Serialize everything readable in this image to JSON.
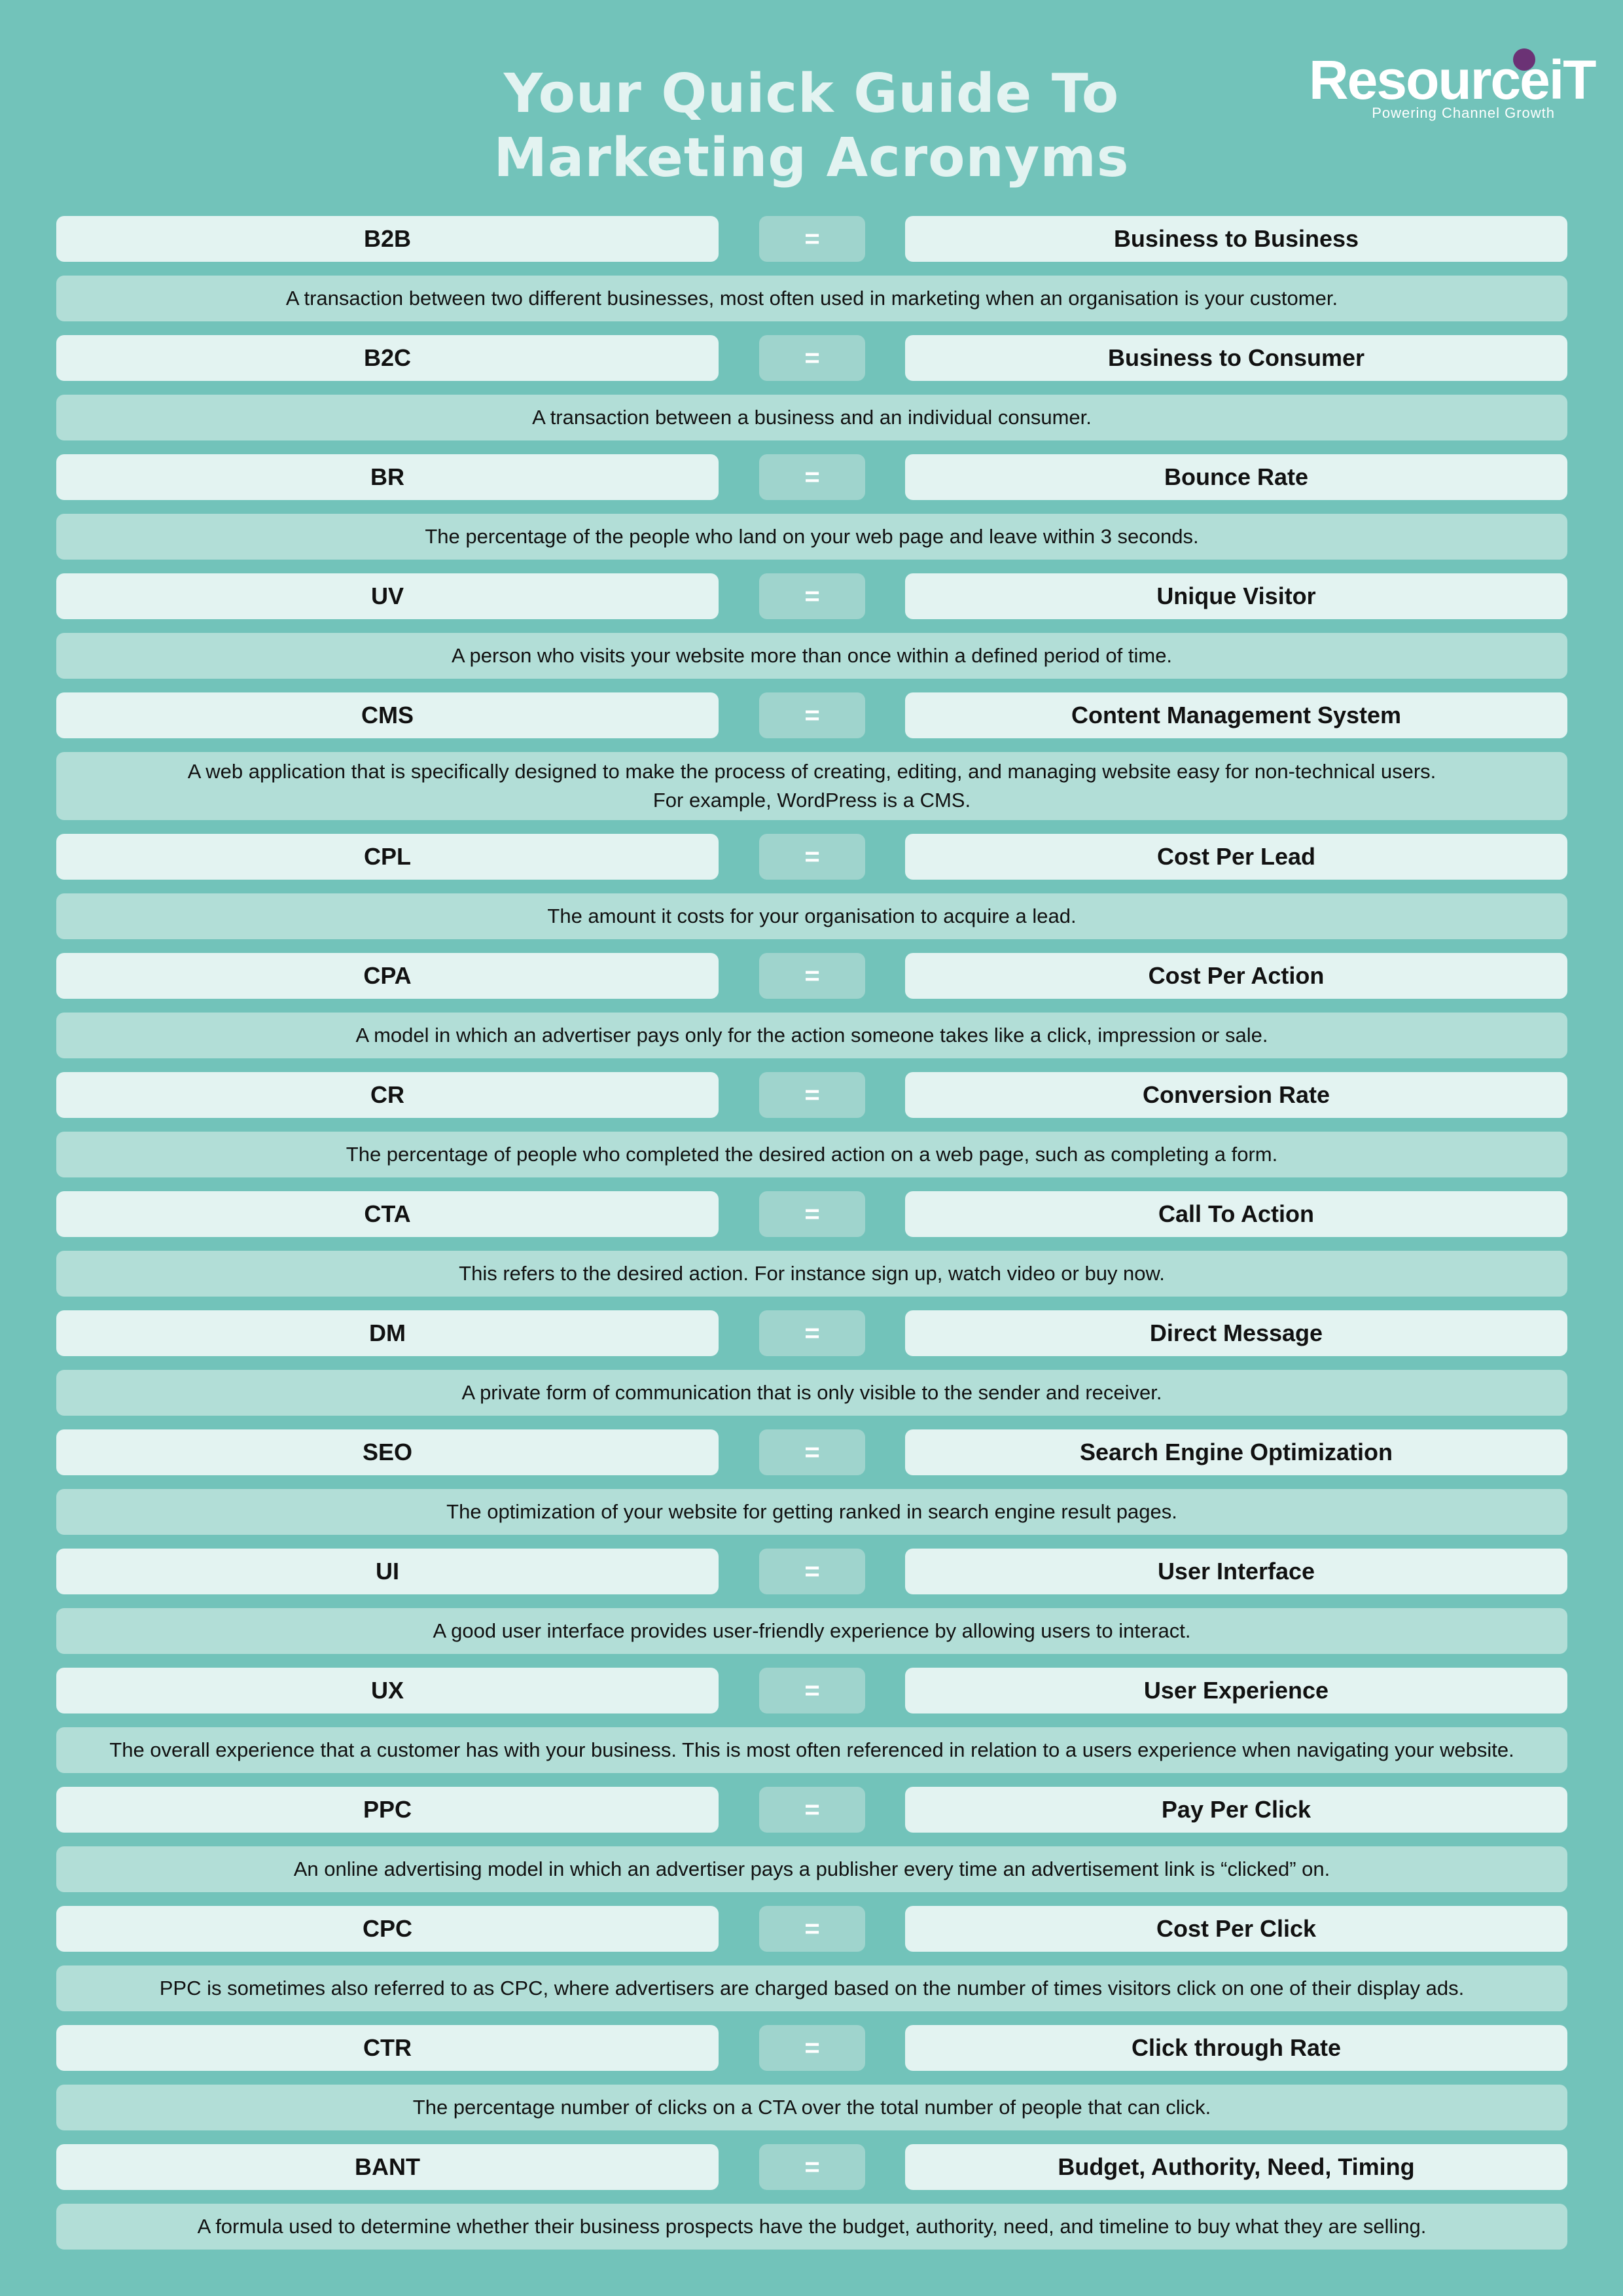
{
  "header": {
    "title_line1": "Your Quick Guide To",
    "title_line2": "Marketing Acronyms"
  },
  "logo": {
    "word": "ResourceiT",
    "tagline": "Powering Channel Growth",
    "dot_color": "#6b3275"
  },
  "colors": {
    "background": "#72c3ba",
    "pill": "#e3f3f1",
    "description": "#b2ded7",
    "equals": "#9fd4cd"
  },
  "equals_sign": "=",
  "entries": [
    {
      "acronym": "B2B",
      "meaning": "Business to Business",
      "description": [
        "A transaction between two different businesses, most often used in marketing when an organisation is your customer."
      ]
    },
    {
      "acronym": "B2C",
      "meaning": "Business to Consumer",
      "description": [
        "A transaction between a business and an individual consumer."
      ]
    },
    {
      "acronym": "BR",
      "meaning": "Bounce Rate",
      "description": [
        "The percentage of the people who land on your web page and leave within 3 seconds."
      ]
    },
    {
      "acronym": "UV",
      "meaning": "Unique Visitor",
      "description": [
        "A person who visits your website more than once within a defined period of time."
      ]
    },
    {
      "acronym": "CMS",
      "meaning": "Content Management System",
      "description": [
        "A web application that is specifically designed to make the process of creating, editing, and managing website easy for non-technical users.",
        "For example, WordPress is a CMS."
      ]
    },
    {
      "acronym": "CPL",
      "meaning": "Cost Per Lead",
      "description": [
        "The amount it costs for your organisation to acquire a lead."
      ]
    },
    {
      "acronym": "CPA",
      "meaning": "Cost Per Action",
      "description": [
        "A model in which an advertiser pays only for the action someone takes like a click, impression or sale."
      ]
    },
    {
      "acronym": "CR",
      "meaning": "Conversion Rate",
      "description": [
        "The percentage of people who completed the desired action on a web page, such as completing a form."
      ]
    },
    {
      "acronym": "CTA",
      "meaning": "Call To Action",
      "description": [
        "This refers to the desired action. For instance sign up, watch video or buy now."
      ]
    },
    {
      "acronym": "DM",
      "meaning": "Direct Message",
      "description": [
        "A private form of communication that is only visible to the sender and receiver."
      ]
    },
    {
      "acronym": "SEO",
      "meaning": "Search Engine Optimization",
      "description": [
        "The optimization of your website for getting ranked in search engine result pages."
      ]
    },
    {
      "acronym": "UI",
      "meaning": "User Interface",
      "description": [
        "A good user interface provides user-friendly experience by allowing users to interact."
      ]
    },
    {
      "acronym": "UX",
      "meaning": "User Experience",
      "description": [
        "The overall experience that a customer has with your business. This is most often referenced in relation to a users experience when navigating your website."
      ]
    },
    {
      "acronym": "PPC",
      "meaning": "Pay Per Click",
      "description": [
        "An online advertising model in which an advertiser pays a publisher every time an advertisement link is “clicked” on."
      ]
    },
    {
      "acronym": "CPC",
      "meaning": "Cost Per Click",
      "description": [
        "PPC is sometimes also referred to as CPC, where advertisers are charged based on the number of times visitors click on one of their display ads."
      ]
    },
    {
      "acronym": "CTR",
      "meaning": "Click through Rate",
      "description": [
        "The percentage number of clicks on a CTA over the total number of people that can click."
      ]
    },
    {
      "acronym": "BANT",
      "meaning": "Budget, Authority, Need, Timing",
      "description": [
        "A formula used to determine whether their business prospects have the budget, authority, need, and timeline to buy what they are selling."
      ]
    }
  ]
}
